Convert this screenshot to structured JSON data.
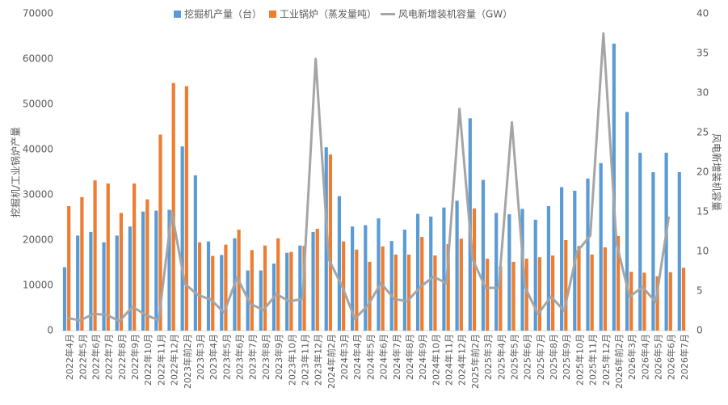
{
  "chart_data": {
    "type": "bar-line",
    "y_label": "挖掘机/工业锅炉产量",
    "y2_label": "风电新增装机容量",
    "categories": [
      "2022年4月",
      "2022年5月",
      "2022年6月",
      "2022年7月",
      "2022年8月",
      "2022年9月",
      "2022年10月",
      "2022年11月",
      "2022年12月",
      "2023年前2月",
      "2023年3月",
      "2023年4月",
      "2023年5月",
      "2023年6月",
      "2023年7月",
      "2023年8月",
      "2023年9月",
      "2023年10月",
      "2023年11月",
      "2023年12月",
      "2024年前2月",
      "2024年3月",
      "2024年4月",
      "2024年5月",
      "2024年6月",
      "2024年7月",
      "2024年8月",
      "2024年9月",
      "2024年10月",
      "2024年11月",
      "2024年12月",
      "2025年前2月",
      "2025年3月",
      "2025年4月",
      "2025年5月",
      "2025年6月",
      "2025年7月",
      "2025年8月",
      "2025年9月",
      "2025年10月",
      "2025年11月",
      "2025年12月",
      "2026年前2月",
      "2026年3月",
      "2026年4月",
      "2026年5月",
      "2026年6月",
      "2026年7月"
    ],
    "series": [
      {
        "name": "挖掘机产量（台）",
        "color": "#5b9bd5",
        "kind": "bar",
        "values": [
          14000,
          21000,
          21800,
          19500,
          21000,
          23000,
          26300,
          26500,
          26700,
          40700,
          34300,
          19700,
          16700,
          20400,
          13300,
          13300,
          14800,
          17200,
          18800,
          21800,
          40500,
          29700,
          23000,
          23300,
          24800,
          19800,
          22300,
          25800,
          25200,
          27200,
          28700,
          46900,
          33300,
          26000,
          25700,
          26900,
          24500,
          27500,
          31700,
          30900,
          33600,
          37000,
          63400,
          48300,
          39300,
          35000,
          39300,
          35000
        ]
      },
      {
        "name": "工业锅炉（蒸发量吨）",
        "color": "#ed7d31",
        "kind": "bar",
        "values": [
          27500,
          29500,
          33200,
          32500,
          26000,
          32500,
          29000,
          43300,
          54700,
          54000,
          19500,
          16500,
          19000,
          22300,
          17800,
          18800,
          20400,
          17400,
          18700,
          22500,
          38900,
          19700,
          17900,
          15200,
          18600,
          16800,
          16800,
          20700,
          16600,
          19100,
          20300,
          27000,
          15900,
          14200,
          15200,
          15900,
          16200,
          16600,
          20000,
          18700,
          16800,
          18400,
          20900,
          13000,
          12800,
          12000,
          12900,
          13900
        ]
      },
      {
        "name": "风电新增装机容量（GW）",
        "color": "#a5a5a5",
        "kind": "line",
        "axis": "y2",
        "values": [
          1.6,
          1.3,
          2.1,
          2.0,
          1.2,
          3.0,
          2.0,
          1.3,
          15.0,
          5.9,
          4.5,
          3.9,
          2.3,
          6.7,
          3.4,
          2.6,
          4.6,
          3.7,
          4.0,
          34.3,
          9.0,
          5.7,
          1.5,
          3.2,
          6.0,
          4.0,
          3.7,
          5.5,
          6.8,
          6.0,
          28.0,
          9.0,
          5.4,
          5.4,
          26.3,
          5.5,
          2.1,
          4.3,
          2.5,
          10.0,
          12.0,
          37.5,
          11.0,
          4.3,
          5.5,
          3.6,
          14.4,
          null
        ]
      }
    ],
    "ylim": [
      0,
      70000
    ],
    "yticks": [
      0,
      10000,
      20000,
      30000,
      40000,
      50000,
      60000,
      70000
    ],
    "y2lim": [
      0,
      40
    ],
    "y2ticks": [
      0,
      5,
      10,
      15,
      20,
      25,
      30,
      35,
      40
    ],
    "legend": "top"
  }
}
